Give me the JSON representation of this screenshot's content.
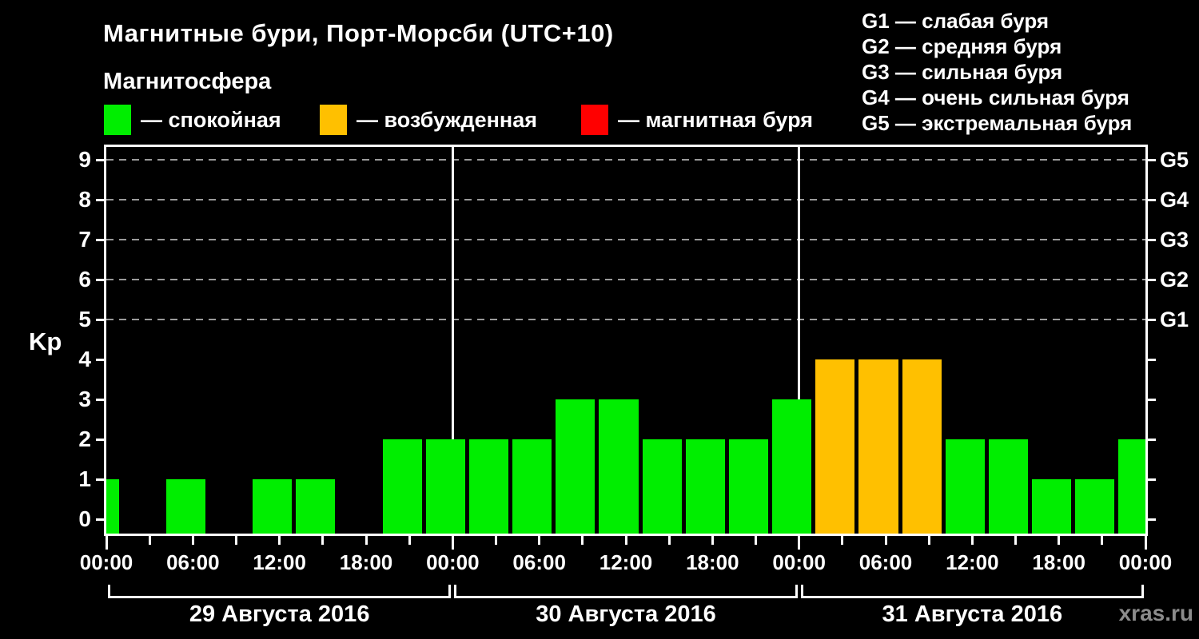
{
  "title": "Магнитные бури, Порт-Морсби (UTC+10)",
  "subtitle": "Магнитосфера",
  "status_legend": [
    {
      "name": "quiet",
      "label": "— спокойная",
      "color": "#00ee00"
    },
    {
      "name": "excited",
      "label": "— возбужденная",
      "color": "#ffc000"
    },
    {
      "name": "storm",
      "label": "— магнитная буря",
      "color": "#ff0000"
    }
  ],
  "g_scale_legend": [
    "G1 — слабая буря",
    "G2 — средняя буря",
    "G3 — сильная буря",
    "G4 — очень сильная буря",
    "G5 — экстремальная буря"
  ],
  "watermark": "xras.ru",
  "chart_data": {
    "type": "bar",
    "title": "Магнитные бури, Порт-Морсби (UTC+10)",
    "ylabel": "Kp",
    "ylim": [
      0,
      9
    ],
    "yticks": [
      0,
      1,
      2,
      3,
      4,
      5,
      6,
      7,
      8,
      9
    ],
    "grid_levels": [
      5,
      6,
      7,
      8,
      9
    ],
    "right_axis_labels": [
      {
        "value": 5,
        "label": "G1"
      },
      {
        "value": 6,
        "label": "G2"
      },
      {
        "value": 7,
        "label": "G3"
      },
      {
        "value": 8,
        "label": "G4"
      },
      {
        "value": 9,
        "label": "G5"
      }
    ],
    "x_axis": {
      "hours_total": 72,
      "tick_step_h": 3,
      "label_step_h": 6,
      "labels_cycle": [
        "00:00",
        "06:00",
        "12:00",
        "18:00"
      ],
      "day_boundaries_h": [
        24,
        48
      ]
    },
    "days": [
      {
        "label": "29 Августа 2016",
        "start_h": 0
      },
      {
        "label": "30 Августа 2016",
        "start_h": 24
      },
      {
        "label": "31 Августа 2016",
        "start_h": 48
      }
    ],
    "bar_interval_hours": 3,
    "kp_values": [
      {
        "start_h": -2,
        "kp": 1
      },
      {
        "start_h": 1,
        "kp": 0
      },
      {
        "start_h": 4,
        "kp": 1
      },
      {
        "start_h": 7,
        "kp": 0
      },
      {
        "start_h": 10,
        "kp": 1
      },
      {
        "start_h": 13,
        "kp": 1
      },
      {
        "start_h": 16,
        "kp": 0
      },
      {
        "start_h": 19,
        "kp": 2
      },
      {
        "start_h": 22,
        "kp": 2
      },
      {
        "start_h": 25,
        "kp": 2
      },
      {
        "start_h": 28,
        "kp": 2
      },
      {
        "start_h": 31,
        "kp": 3
      },
      {
        "start_h": 34,
        "kp": 3
      },
      {
        "start_h": 37,
        "kp": 2
      },
      {
        "start_h": 40,
        "kp": 2
      },
      {
        "start_h": 43,
        "kp": 2
      },
      {
        "start_h": 46,
        "kp": 3
      },
      {
        "start_h": 49,
        "kp": 4
      },
      {
        "start_h": 52,
        "kp": 4
      },
      {
        "start_h": 55,
        "kp": 4
      },
      {
        "start_h": 58,
        "kp": 2
      },
      {
        "start_h": 61,
        "kp": 2
      },
      {
        "start_h": 64,
        "kp": 1
      },
      {
        "start_h": 67,
        "kp": 1
      },
      {
        "start_h": 70,
        "kp": 2
      }
    ],
    "color_rules": {
      "quiet_max_kp": 3,
      "excited_kp": 4,
      "storm_min_kp": 5
    },
    "colors": {
      "quiet": "#00ee00",
      "excited": "#ffc000",
      "storm": "#ff0000",
      "grid": "#9a9a9a",
      "axis": "#ffffff"
    }
  }
}
